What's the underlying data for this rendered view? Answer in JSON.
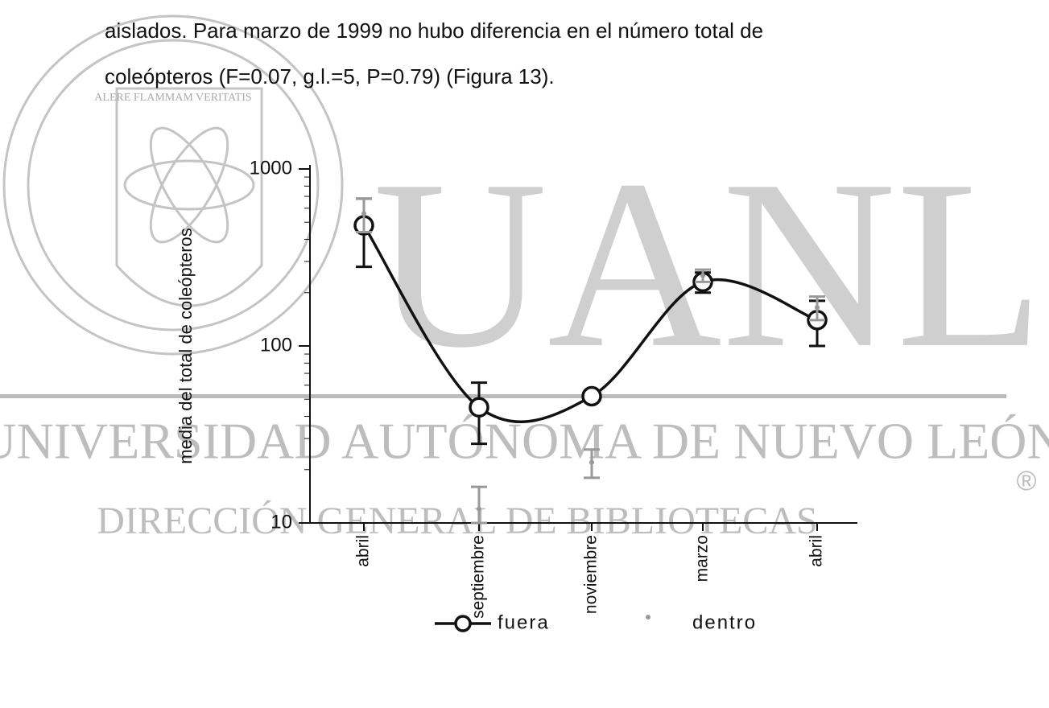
{
  "text": {
    "lines": [
      "aislados. Para marzo de 1999 no hubo diferencia en el número total de",
      "coleópteros (F=0.07, g.l.=5, P=0.79) (Figura 13)."
    ]
  },
  "watermark": {
    "seal_motto": "ALERE FLAMMAM VERITATIS",
    "logo": "UANL",
    "university": "UNIVERSIDAD AUTÓNOMA DE NUEVO LEÓN",
    "department": "DIRECCIÓN GENERAL DE BIBLIOTECAS",
    "registered": "®"
  },
  "chart_data": {
    "type": "line",
    "y_label": "media del total de coleópteros",
    "categories": [
      "abril",
      "septiembre",
      "noviembre",
      "marzo",
      "abril"
    ],
    "log_y": true,
    "ylim": [
      10,
      1000
    ],
    "yticks": [
      10,
      100,
      1000
    ],
    "series": [
      {
        "name": "fuera",
        "color": "#111111",
        "values": [
          480,
          45,
          52,
          230,
          140
        ],
        "errors": [
          200,
          17,
          null,
          30,
          40
        ]
      },
      {
        "name": "dentro",
        "color": "#999999",
        "values": [
          560,
          12,
          22,
          250,
          165
        ],
        "errors": [
          120,
          4,
          4,
          20,
          25
        ]
      }
    ]
  }
}
